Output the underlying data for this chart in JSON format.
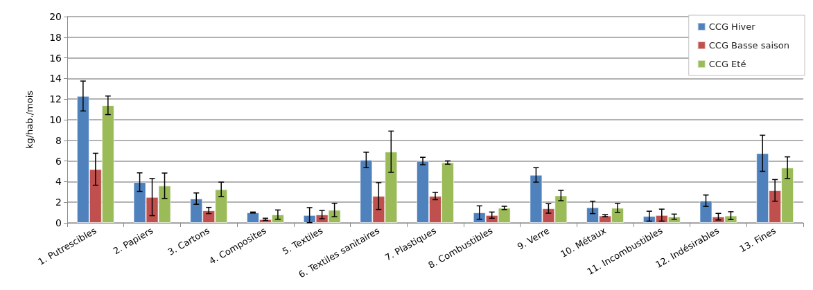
{
  "chart_data": {
    "type": "bar",
    "ylabel": "kg/hab./mois",
    "categories": [
      "1. Putrescibles",
      "2. Papiers",
      "3. Cartons",
      "4. Composites",
      "5. Textiles",
      "6. Textiles sanitaires",
      "7. Plastiques",
      "8. Combustibles",
      "9. Verre",
      "10. Métaux",
      "11. Incombustibles",
      "12. Indésirables",
      "13. Fines"
    ],
    "series": [
      {
        "name": "CCG Hiver",
        "color": "#4f81bd",
        "values": [
          12.3,
          3.95,
          2.35,
          1.0,
          0.75,
          6.1,
          6.0,
          1.0,
          4.65,
          1.5,
          0.65,
          2.15,
          6.75
        ],
        "errors": [
          1.45,
          0.9,
          0.55,
          0.05,
          0.73,
          0.75,
          0.36,
          0.65,
          0.7,
          0.6,
          0.48,
          0.55,
          1.75
        ]
      },
      {
        "name": "CCG Basse saison",
        "color": "#c0504d",
        "values": [
          5.2,
          2.5,
          1.2,
          0.35,
          0.8,
          2.6,
          2.6,
          0.75,
          1.4,
          0.7,
          0.75,
          0.6,
          3.15
        ],
        "errors": [
          1.55,
          1.8,
          0.3,
          0.1,
          0.4,
          1.3,
          0.35,
          0.3,
          0.46,
          0.1,
          0.58,
          0.32,
          1.05
        ]
      },
      {
        "name": "CCG Eté",
        "color": "#9bbb59",
        "values": [
          11.4,
          3.6,
          3.25,
          0.8,
          1.25,
          6.9,
          5.85,
          1.45,
          2.65,
          1.45,
          0.6,
          0.7,
          5.35
        ],
        "errors": [
          0.9,
          1.23,
          0.7,
          0.45,
          0.65,
          2.0,
          0.16,
          0.16,
          0.5,
          0.43,
          0.25,
          0.38,
          1.05
        ]
      }
    ],
    "ylim": [
      0,
      20
    ],
    "yticks": [
      0,
      2,
      4,
      6,
      8,
      10,
      12,
      14,
      16,
      18,
      20
    ],
    "grid": "y",
    "legend": "top right"
  }
}
